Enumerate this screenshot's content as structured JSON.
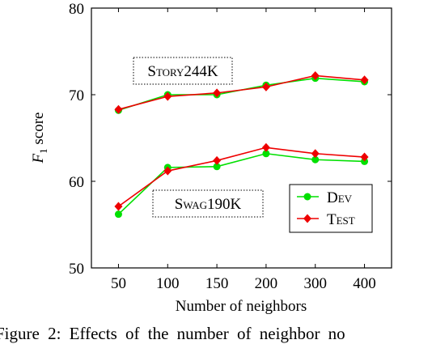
{
  "chart_data": {
    "type": "line",
    "categories": [
      "50",
      "100",
      "150",
      "200",
      "300",
      "400"
    ],
    "series": [
      {
        "name": "Dev",
        "color": "#00e000",
        "marker": "circle",
        "group": "Story244K",
        "values": [
          68.2,
          70.0,
          70.0,
          71.1,
          71.9,
          71.5
        ]
      },
      {
        "name": "Test",
        "color": "#ee0000",
        "marker": "diamond",
        "group": "Story244K",
        "values": [
          68.3,
          69.8,
          70.2,
          70.9,
          72.2,
          71.7
        ]
      },
      {
        "name": "Dev",
        "color": "#00e000",
        "marker": "circle",
        "group": "Swag190K",
        "values": [
          56.2,
          61.6,
          61.7,
          63.2,
          62.5,
          62.3
        ]
      },
      {
        "name": "Test",
        "color": "#ee0000",
        "marker": "diamond",
        "group": "Swag190K",
        "values": [
          57.1,
          61.2,
          62.4,
          63.9,
          63.2,
          62.8
        ]
      }
    ],
    "xlabel": "Number of neighbors",
    "ylabel": "F1 score",
    "ylabel_main": "F",
    "ylabel_sub": "1",
    "ylabel_rest": " score",
    "ylim": [
      50,
      80
    ],
    "yticks": [
      50,
      60,
      70,
      80
    ],
    "grid": false,
    "legend": {
      "placement": "inside lower-right",
      "entries": [
        "Dev",
        "Test"
      ]
    },
    "annotations": [
      "Story244K",
      "Swag190K"
    ]
  },
  "caption": "Figure 2: Effects of the number of neighbor no"
}
